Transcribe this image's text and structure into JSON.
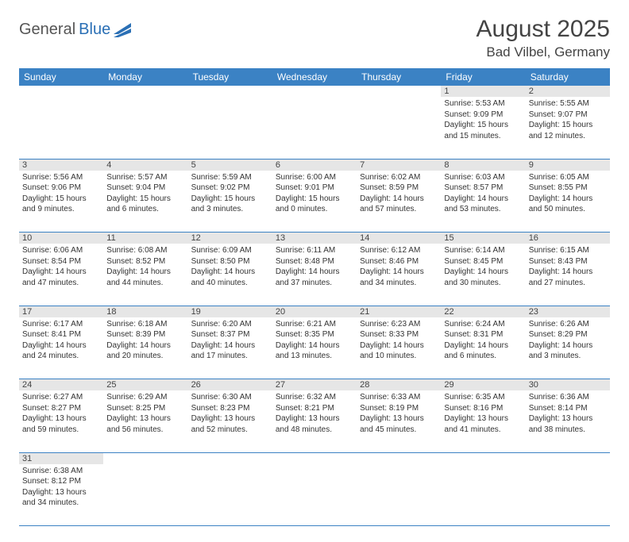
{
  "logo": {
    "text1": "General",
    "text2": "Blue"
  },
  "title": "August 2025",
  "location": "Bad Vilbel, Germany",
  "colors": {
    "header_bg": "#3b82c4",
    "header_text": "#ffffff",
    "daynum_bg": "#e6e6e6",
    "row_divider": "#3b82c4",
    "logo_blue": "#2a6fb5",
    "logo_gray": "#555555",
    "page_bg": "#ffffff",
    "body_text": "#333333"
  },
  "weekdays": [
    "Sunday",
    "Monday",
    "Tuesday",
    "Wednesday",
    "Thursday",
    "Friday",
    "Saturday"
  ],
  "weeks": [
    {
      "nums": [
        "",
        "",
        "",
        "",
        "",
        "1",
        "2"
      ],
      "cells": [
        null,
        null,
        null,
        null,
        null,
        {
          "sunrise": "Sunrise: 5:53 AM",
          "sunset": "Sunset: 9:09 PM",
          "day1": "Daylight: 15 hours",
          "day2": "and 15 minutes."
        },
        {
          "sunrise": "Sunrise: 5:55 AM",
          "sunset": "Sunset: 9:07 PM",
          "day1": "Daylight: 15 hours",
          "day2": "and 12 minutes."
        }
      ]
    },
    {
      "nums": [
        "3",
        "4",
        "5",
        "6",
        "7",
        "8",
        "9"
      ],
      "cells": [
        {
          "sunrise": "Sunrise: 5:56 AM",
          "sunset": "Sunset: 9:06 PM",
          "day1": "Daylight: 15 hours",
          "day2": "and 9 minutes."
        },
        {
          "sunrise": "Sunrise: 5:57 AM",
          "sunset": "Sunset: 9:04 PM",
          "day1": "Daylight: 15 hours",
          "day2": "and 6 minutes."
        },
        {
          "sunrise": "Sunrise: 5:59 AM",
          "sunset": "Sunset: 9:02 PM",
          "day1": "Daylight: 15 hours",
          "day2": "and 3 minutes."
        },
        {
          "sunrise": "Sunrise: 6:00 AM",
          "sunset": "Sunset: 9:01 PM",
          "day1": "Daylight: 15 hours",
          "day2": "and 0 minutes."
        },
        {
          "sunrise": "Sunrise: 6:02 AM",
          "sunset": "Sunset: 8:59 PM",
          "day1": "Daylight: 14 hours",
          "day2": "and 57 minutes."
        },
        {
          "sunrise": "Sunrise: 6:03 AM",
          "sunset": "Sunset: 8:57 PM",
          "day1": "Daylight: 14 hours",
          "day2": "and 53 minutes."
        },
        {
          "sunrise": "Sunrise: 6:05 AM",
          "sunset": "Sunset: 8:55 PM",
          "day1": "Daylight: 14 hours",
          "day2": "and 50 minutes."
        }
      ]
    },
    {
      "nums": [
        "10",
        "11",
        "12",
        "13",
        "14",
        "15",
        "16"
      ],
      "cells": [
        {
          "sunrise": "Sunrise: 6:06 AM",
          "sunset": "Sunset: 8:54 PM",
          "day1": "Daylight: 14 hours",
          "day2": "and 47 minutes."
        },
        {
          "sunrise": "Sunrise: 6:08 AM",
          "sunset": "Sunset: 8:52 PM",
          "day1": "Daylight: 14 hours",
          "day2": "and 44 minutes."
        },
        {
          "sunrise": "Sunrise: 6:09 AM",
          "sunset": "Sunset: 8:50 PM",
          "day1": "Daylight: 14 hours",
          "day2": "and 40 minutes."
        },
        {
          "sunrise": "Sunrise: 6:11 AM",
          "sunset": "Sunset: 8:48 PM",
          "day1": "Daylight: 14 hours",
          "day2": "and 37 minutes."
        },
        {
          "sunrise": "Sunrise: 6:12 AM",
          "sunset": "Sunset: 8:46 PM",
          "day1": "Daylight: 14 hours",
          "day2": "and 34 minutes."
        },
        {
          "sunrise": "Sunrise: 6:14 AM",
          "sunset": "Sunset: 8:45 PM",
          "day1": "Daylight: 14 hours",
          "day2": "and 30 minutes."
        },
        {
          "sunrise": "Sunrise: 6:15 AM",
          "sunset": "Sunset: 8:43 PM",
          "day1": "Daylight: 14 hours",
          "day2": "and 27 minutes."
        }
      ]
    },
    {
      "nums": [
        "17",
        "18",
        "19",
        "20",
        "21",
        "22",
        "23"
      ],
      "cells": [
        {
          "sunrise": "Sunrise: 6:17 AM",
          "sunset": "Sunset: 8:41 PM",
          "day1": "Daylight: 14 hours",
          "day2": "and 24 minutes."
        },
        {
          "sunrise": "Sunrise: 6:18 AM",
          "sunset": "Sunset: 8:39 PM",
          "day1": "Daylight: 14 hours",
          "day2": "and 20 minutes."
        },
        {
          "sunrise": "Sunrise: 6:20 AM",
          "sunset": "Sunset: 8:37 PM",
          "day1": "Daylight: 14 hours",
          "day2": "and 17 minutes."
        },
        {
          "sunrise": "Sunrise: 6:21 AM",
          "sunset": "Sunset: 8:35 PM",
          "day1": "Daylight: 14 hours",
          "day2": "and 13 minutes."
        },
        {
          "sunrise": "Sunrise: 6:23 AM",
          "sunset": "Sunset: 8:33 PM",
          "day1": "Daylight: 14 hours",
          "day2": "and 10 minutes."
        },
        {
          "sunrise": "Sunrise: 6:24 AM",
          "sunset": "Sunset: 8:31 PM",
          "day1": "Daylight: 14 hours",
          "day2": "and 6 minutes."
        },
        {
          "sunrise": "Sunrise: 6:26 AM",
          "sunset": "Sunset: 8:29 PM",
          "day1": "Daylight: 14 hours",
          "day2": "and 3 minutes."
        }
      ]
    },
    {
      "nums": [
        "24",
        "25",
        "26",
        "27",
        "28",
        "29",
        "30"
      ],
      "cells": [
        {
          "sunrise": "Sunrise: 6:27 AM",
          "sunset": "Sunset: 8:27 PM",
          "day1": "Daylight: 13 hours",
          "day2": "and 59 minutes."
        },
        {
          "sunrise": "Sunrise: 6:29 AM",
          "sunset": "Sunset: 8:25 PM",
          "day1": "Daylight: 13 hours",
          "day2": "and 56 minutes."
        },
        {
          "sunrise": "Sunrise: 6:30 AM",
          "sunset": "Sunset: 8:23 PM",
          "day1": "Daylight: 13 hours",
          "day2": "and 52 minutes."
        },
        {
          "sunrise": "Sunrise: 6:32 AM",
          "sunset": "Sunset: 8:21 PM",
          "day1": "Daylight: 13 hours",
          "day2": "and 48 minutes."
        },
        {
          "sunrise": "Sunrise: 6:33 AM",
          "sunset": "Sunset: 8:19 PM",
          "day1": "Daylight: 13 hours",
          "day2": "and 45 minutes."
        },
        {
          "sunrise": "Sunrise: 6:35 AM",
          "sunset": "Sunset: 8:16 PM",
          "day1": "Daylight: 13 hours",
          "day2": "and 41 minutes."
        },
        {
          "sunrise": "Sunrise: 6:36 AM",
          "sunset": "Sunset: 8:14 PM",
          "day1": "Daylight: 13 hours",
          "day2": "and 38 minutes."
        }
      ]
    },
    {
      "nums": [
        "31",
        "",
        "",
        "",
        "",
        "",
        ""
      ],
      "cells": [
        {
          "sunrise": "Sunrise: 6:38 AM",
          "sunset": "Sunset: 8:12 PM",
          "day1": "Daylight: 13 hours",
          "day2": "and 34 minutes."
        },
        null,
        null,
        null,
        null,
        null,
        null
      ]
    }
  ]
}
